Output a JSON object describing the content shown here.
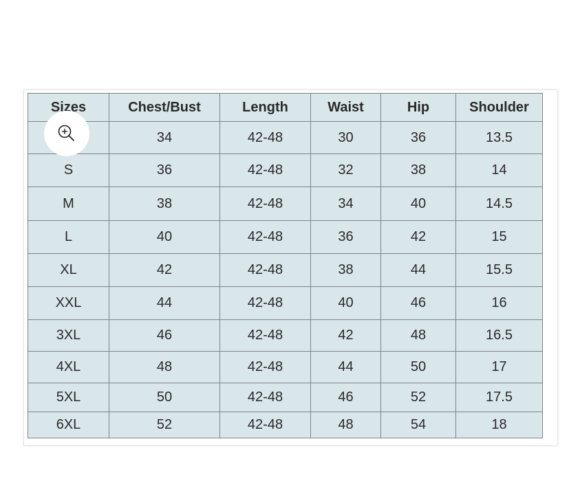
{
  "columns": [
    "Sizes",
    "Chest/Bust",
    "Length",
    "Waist",
    "Hip",
    "Shoulder"
  ],
  "rows": [
    [
      "",
      "34",
      "42-48",
      "30",
      "36",
      "13.5"
    ],
    [
      "S",
      "36",
      "42-48",
      "32",
      "38",
      "14"
    ],
    [
      "M",
      "38",
      "42-48",
      "34",
      "40",
      "14.5"
    ],
    [
      "L",
      "40",
      "42-48",
      "36",
      "42",
      "15"
    ],
    [
      "XL",
      "42",
      "42-48",
      "38",
      "44",
      "15.5"
    ],
    [
      "XXL",
      "44",
      "42-48",
      "40",
      "46",
      "16"
    ],
    [
      "3XL",
      "46",
      "42-48",
      "42",
      "48",
      "16.5"
    ],
    [
      "4XL",
      "48",
      "42-48",
      "44",
      "50",
      "17"
    ],
    [
      "5XL",
      "50",
      "42-48",
      "46",
      "52",
      "17.5"
    ],
    [
      "6XL",
      "52",
      "42-48",
      "48",
      "54",
      "18"
    ]
  ],
  "zoom_icon": "zoom-in-icon"
}
